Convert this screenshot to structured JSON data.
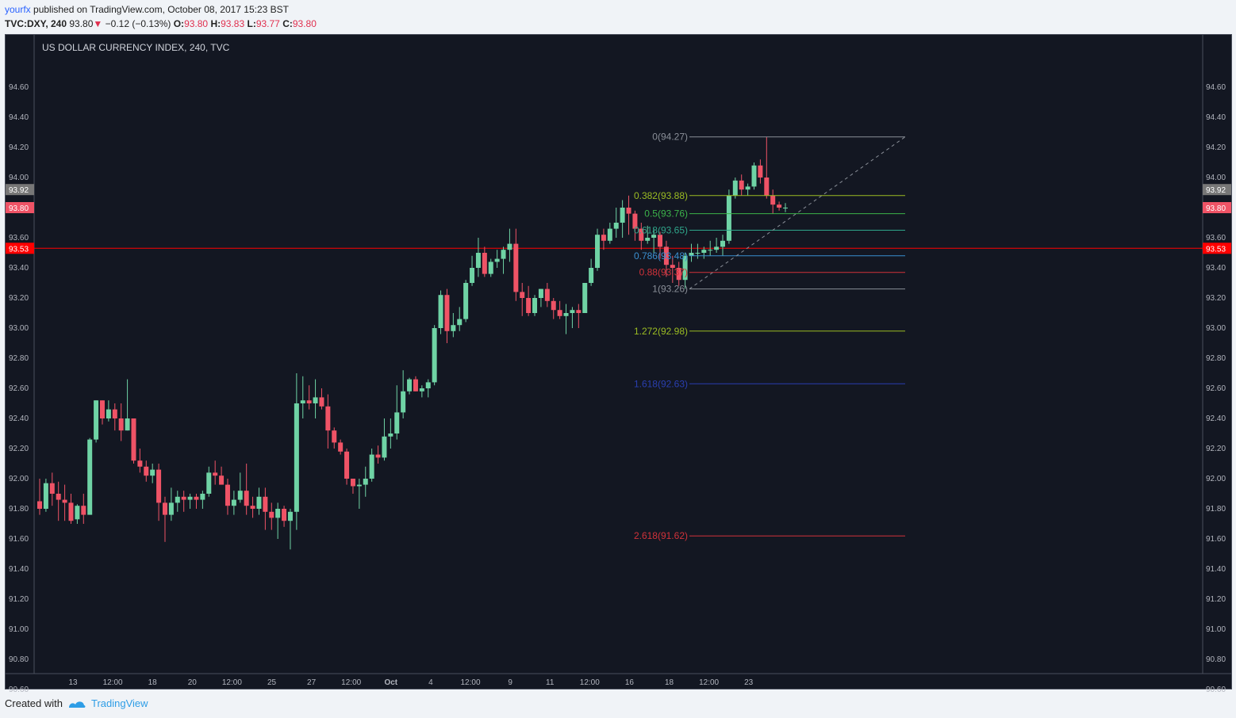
{
  "header": {
    "user": "yourfx",
    "published_text": " published on TradingView.com, October 08, 2017 15:23 BST"
  },
  "ohlc": {
    "symbol": "TVC:DXY, 240",
    "last": "93.80",
    "arrow": "▼",
    "change": "−0.12 (−0.13%)",
    "o_label": "O:",
    "o_value": "93.80",
    "h_label": "H:",
    "h_value": "93.83",
    "l_label": "L:",
    "l_value": "93.77",
    "c_label": "C:",
    "c_value": "93.80"
  },
  "footer": {
    "created_with": "Created with",
    "brand": "TradingView"
  },
  "colors": {
    "up": "#26a69a",
    "up_fill": "#6fd3a5",
    "down": "#ef5366",
    "background": "#131722",
    "last_price": "#ef5366",
    "hline": "#ff0000",
    "prev_close": "#777777"
  },
  "chart_data": {
    "type": "candlestick",
    "title": "US DOLLAR CURRENCY INDEX, 240, TVC",
    "ylim": [
      90.5,
      94.75
    ],
    "y_ticks": [
      "94.60",
      "94.40",
      "94.20",
      "94.00",
      "93.60",
      "93.40",
      "93.20",
      "93.00",
      "92.80",
      "92.60",
      "92.40",
      "92.20",
      "92.00",
      "91.80",
      "91.60",
      "91.40",
      "91.20",
      "91.00",
      "90.80",
      "90.60"
    ],
    "x_ticks": [
      "13",
      "12:00",
      "18",
      "20",
      "12:00",
      "25",
      "27",
      "12:00",
      "Oct",
      "4",
      "12:00",
      "9",
      "11",
      "12:00",
      "16",
      "18",
      "12:00",
      "23"
    ],
    "price_labels": [
      {
        "text": "93.92",
        "value": 93.92,
        "kind": "prev"
      },
      {
        "text": "93.80",
        "value": 93.8,
        "kind": "last"
      },
      {
        "text": "93.53",
        "value": 93.53,
        "kind": "hline"
      }
    ],
    "horizontal_line": 93.53,
    "candles": [
      [
        91.85,
        92.0,
        91.76,
        91.8
      ],
      [
        91.8,
        92.0,
        91.78,
        91.97
      ],
      [
        91.97,
        92.04,
        91.82,
        91.9
      ],
      [
        91.9,
        91.98,
        91.72,
        91.86
      ],
      [
        91.86,
        91.96,
        91.72,
        91.84
      ],
      [
        91.84,
        91.9,
        91.7,
        91.72
      ],
      [
        91.73,
        91.83,
        91.7,
        91.82
      ],
      [
        91.82,
        91.9,
        91.7,
        91.76
      ],
      [
        91.76,
        92.27,
        91.76,
        92.26
      ],
      [
        92.26,
        92.52,
        92.24,
        92.52
      ],
      [
        92.52,
        92.52,
        92.36,
        92.4
      ],
      [
        92.4,
        92.52,
        92.38,
        92.46
      ],
      [
        92.46,
        92.5,
        92.32,
        92.4
      ],
      [
        92.4,
        92.5,
        92.25,
        92.32
      ],
      [
        92.32,
        92.66,
        92.32,
        92.4
      ],
      [
        92.4,
        92.4,
        92.1,
        92.12
      ],
      [
        92.12,
        92.2,
        92.04,
        92.08
      ],
      [
        92.08,
        92.12,
        91.98,
        92.02
      ],
      [
        92.02,
        92.1,
        91.97,
        92.06
      ],
      [
        92.06,
        92.1,
        91.72,
        91.84
      ],
      [
        91.84,
        91.88,
        91.58,
        91.76
      ],
      [
        91.76,
        91.94,
        91.72,
        91.84
      ],
      [
        91.84,
        91.92,
        91.78,
        91.88
      ],
      [
        91.88,
        91.92,
        91.78,
        91.86
      ],
      [
        91.86,
        91.9,
        91.8,
        91.88
      ],
      [
        91.88,
        91.9,
        91.8,
        91.86
      ],
      [
        91.86,
        91.92,
        91.8,
        91.9
      ],
      [
        91.9,
        92.08,
        91.88,
        92.04
      ],
      [
        92.04,
        92.12,
        91.96,
        92.02
      ],
      [
        92.02,
        92.08,
        91.98,
        91.96
      ],
      [
        91.96,
        92.0,
        91.76,
        91.82
      ],
      [
        91.82,
        91.92,
        91.76,
        91.86
      ],
      [
        91.86,
        92.04,
        91.84,
        91.92
      ],
      [
        91.92,
        92.1,
        91.76,
        91.82
      ],
      [
        91.82,
        91.88,
        91.74,
        91.8
      ],
      [
        91.8,
        91.94,
        91.76,
        91.88
      ],
      [
        91.88,
        91.94,
        91.66,
        91.78
      ],
      [
        91.78,
        91.84,
        91.66,
        91.74
      ],
      [
        91.74,
        91.84,
        91.6,
        91.8
      ],
      [
        91.8,
        91.82,
        91.68,
        91.72
      ],
      [
        91.72,
        91.8,
        91.53,
        91.78
      ],
      [
        91.78,
        92.7,
        91.66,
        92.5
      ],
      [
        92.5,
        92.68,
        92.4,
        92.52
      ],
      [
        92.52,
        92.62,
        92.46,
        92.5
      ],
      [
        92.5,
        92.66,
        92.4,
        92.54
      ],
      [
        92.54,
        92.6,
        92.46,
        92.48
      ],
      [
        92.48,
        92.56,
        92.2,
        92.32
      ],
      [
        92.32,
        92.34,
        92.2,
        92.24
      ],
      [
        92.24,
        92.26,
        92.16,
        92.18
      ],
      [
        92.18,
        92.2,
        91.96,
        92.0
      ],
      [
        92.0,
        92.0,
        91.9,
        91.95
      ],
      [
        91.95,
        92.0,
        91.8,
        91.96
      ],
      [
        91.96,
        92.08,
        91.88,
        92.0
      ],
      [
        92.0,
        92.2,
        91.98,
        92.16
      ],
      [
        92.16,
        92.22,
        92.1,
        92.14
      ],
      [
        92.14,
        92.4,
        92.12,
        92.28
      ],
      [
        92.28,
        92.4,
        92.2,
        92.3
      ],
      [
        92.3,
        92.62,
        92.26,
        92.44
      ],
      [
        92.44,
        92.72,
        92.4,
        92.58
      ],
      [
        92.58,
        92.67,
        92.56,
        92.66
      ],
      [
        92.66,
        92.68,
        92.58,
        92.58
      ],
      [
        92.58,
        92.62,
        92.54,
        92.6
      ],
      [
        92.6,
        92.66,
        92.54,
        92.64
      ],
      [
        92.64,
        93.02,
        92.62,
        93.0
      ],
      [
        93.0,
        93.25,
        92.96,
        93.22
      ],
      [
        93.22,
        93.26,
        92.9,
        92.98
      ],
      [
        92.98,
        93.1,
        92.94,
        93.02
      ],
      [
        93.02,
        93.14,
        92.98,
        93.06
      ],
      [
        93.06,
        93.32,
        93.04,
        93.3
      ],
      [
        93.3,
        93.48,
        93.28,
        93.4
      ],
      [
        93.4,
        93.6,
        93.34,
        93.5
      ],
      [
        93.5,
        93.54,
        93.34,
        93.36
      ],
      [
        93.36,
        93.46,
        93.34,
        93.44
      ],
      [
        93.44,
        93.52,
        93.4,
        93.46
      ],
      [
        93.46,
        93.54,
        93.36,
        93.52
      ],
      [
        93.52,
        93.66,
        93.44,
        93.56
      ],
      [
        93.56,
        93.66,
        93.18,
        93.24
      ],
      [
        93.24,
        93.3,
        93.08,
        93.2
      ],
      [
        93.2,
        93.28,
        93.08,
        93.1
      ],
      [
        93.1,
        93.22,
        93.08,
        93.2
      ],
      [
        93.2,
        93.26,
        93.14,
        93.26
      ],
      [
        93.26,
        93.3,
        93.14,
        93.18
      ],
      [
        93.18,
        93.2,
        93.06,
        93.12
      ],
      [
        93.12,
        93.18,
        93.06,
        93.08
      ],
      [
        93.08,
        93.16,
        92.96,
        93.1
      ],
      [
        93.1,
        93.14,
        93.0,
        93.12
      ],
      [
        93.12,
        93.16,
        93.0,
        93.1
      ],
      [
        93.1,
        93.3,
        93.1,
        93.3
      ],
      [
        93.3,
        93.46,
        93.28,
        93.4
      ],
      [
        93.4,
        93.66,
        93.38,
        93.62
      ],
      [
        93.62,
        93.66,
        93.52,
        93.58
      ],
      [
        93.58,
        93.7,
        93.56,
        93.66
      ],
      [
        93.66,
        93.8,
        93.6,
        93.7
      ],
      [
        93.7,
        93.85,
        93.6,
        93.8
      ],
      [
        93.8,
        93.88,
        93.62,
        93.76
      ],
      [
        93.76,
        93.78,
        93.58,
        93.66
      ],
      [
        93.66,
        93.7,
        93.52,
        93.58
      ],
      [
        93.58,
        93.68,
        93.56,
        93.6
      ],
      [
        93.6,
        93.66,
        93.5,
        93.62
      ],
      [
        93.62,
        93.64,
        93.46,
        93.54
      ],
      [
        93.54,
        93.58,
        93.34,
        93.42
      ],
      [
        93.42,
        93.48,
        93.3,
        93.4
      ],
      [
        93.4,
        93.44,
        93.28,
        93.32
      ],
      [
        93.32,
        93.5,
        93.26,
        93.48
      ],
      [
        93.48,
        93.56,
        93.44,
        93.5
      ],
      [
        93.5,
        93.56,
        93.46,
        93.5
      ],
      [
        93.5,
        93.54,
        93.46,
        93.52
      ],
      [
        93.52,
        93.58,
        93.48,
        93.52
      ],
      [
        93.52,
        93.6,
        93.5,
        93.54
      ],
      [
        93.54,
        93.62,
        93.48,
        93.58
      ],
      [
        93.58,
        93.92,
        93.56,
        93.88
      ],
      [
        93.88,
        94.0,
        93.86,
        93.98
      ],
      [
        93.98,
        94.02,
        93.88,
        93.92
      ],
      [
        93.92,
        93.96,
        93.88,
        93.94
      ],
      [
        93.94,
        94.1,
        93.92,
        94.08
      ],
      [
        94.08,
        94.12,
        93.96,
        94.0
      ],
      [
        94.0,
        94.27,
        93.86,
        93.88
      ],
      [
        93.88,
        93.92,
        93.76,
        93.82
      ],
      [
        93.82,
        93.84,
        93.78,
        93.8
      ],
      [
        93.8,
        93.83,
        93.77,
        93.8
      ]
    ],
    "fib_levels": [
      {
        "label": "0(94.27)",
        "value": 94.27,
        "color": "#8a8f98"
      },
      {
        "label": "0.382(93.88)",
        "value": 93.88,
        "color": "#9bbc22"
      },
      {
        "label": "0.5(93.76)",
        "value": 93.76,
        "color": "#3cb34a"
      },
      {
        "label": "0.618(93.65)",
        "value": 93.65,
        "color": "#2fa58a"
      },
      {
        "label": "0.786(93.48)",
        "value": 93.48,
        "color": "#3b8fd0"
      },
      {
        "label": "0.88(93.37)",
        "value": 93.37,
        "color": "#d1323a"
      },
      {
        "label": "1(93.26)",
        "value": 93.26,
        "color": "#8a8f98"
      },
      {
        "label": "1.272(92.98)",
        "value": 92.98,
        "color": "#9bbc22"
      },
      {
        "label": "1.618(92.63)",
        "value": 92.63,
        "color": "#2a3fb0"
      },
      {
        "label": "2.618(91.62)",
        "value": 91.62,
        "color": "#d1323a"
      }
    ],
    "trendline": {
      "from": 93.26,
      "to": 94.27
    }
  }
}
